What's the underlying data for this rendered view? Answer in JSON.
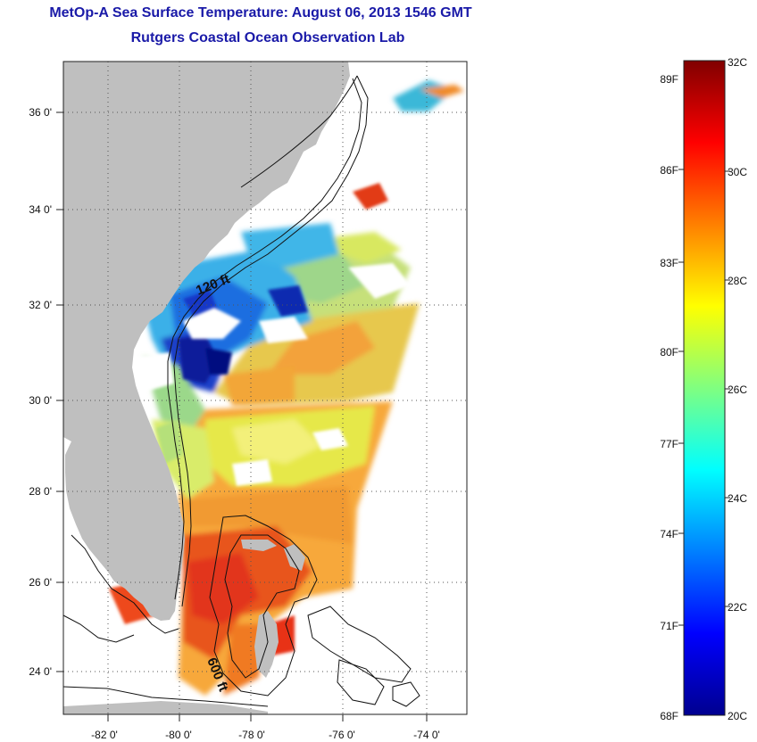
{
  "header": {
    "title": "MetOp-A Sea Surface Temperature:  August 06, 2013 1546 GMT",
    "subtitle": "Rutgers Coastal Ocean Observation Lab"
  },
  "map": {
    "lon_range": [
      -83,
      -73
    ],
    "lat_range": [
      23,
      37
    ],
    "lon_ticks": [
      {
        "value": -82,
        "label": "-82 0'"
      },
      {
        "value": -80,
        "label": "-80 0'"
      },
      {
        "value": -78,
        "label": "-78 0'"
      },
      {
        "value": -76,
        "label": "-76 0'"
      },
      {
        "value": -74,
        "label": "-74 0'"
      }
    ],
    "lat_ticks": [
      {
        "value": 36,
        "label": "36 0'"
      },
      {
        "value": 34,
        "label": "34 0'"
      },
      {
        "value": 32,
        "label": "32 0'"
      },
      {
        "value": 30,
        "label": "30 0'"
      },
      {
        "value": 28,
        "label": "28 0'"
      },
      {
        "value": 26,
        "label": "26 0'"
      },
      {
        "value": 24,
        "label": "24 0'"
      }
    ],
    "contour_labels": [
      "120 ft",
      "600 ft"
    ],
    "land_color": "#bfbfbf",
    "ocean_color": "#ffffff"
  },
  "colorbar": {
    "celsius_labels": [
      "32C",
      "30C",
      "28C",
      "26C",
      "24C",
      "22C",
      "20C"
    ],
    "fahrenheit_labels": [
      "89F",
      "86F",
      "83F",
      "80F",
      "77F",
      "74F",
      "71F",
      "68F"
    ],
    "range_c": [
      20,
      32
    ]
  }
}
